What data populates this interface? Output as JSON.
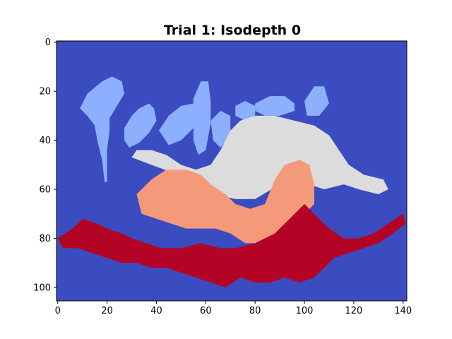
{
  "chart_data": {
    "type": "heatmap",
    "title": "Trial 1: Isodepth 0",
    "xlabel": "",
    "ylabel": "",
    "xlim": [
      0,
      141
    ],
    "ylim": [
      105,
      0
    ],
    "x_ticks": [
      0,
      20,
      40,
      60,
      80,
      100,
      120,
      140
    ],
    "y_ticks": [
      0,
      20,
      40,
      60,
      80,
      100
    ],
    "grid": false,
    "colormap": "coolwarm",
    "levels": [
      {
        "level": 0,
        "color": "#3b4cc0"
      },
      {
        "level": 1,
        "color": "#8db0fe"
      },
      {
        "level": 2,
        "color": "#dddcdc"
      },
      {
        "level": 3,
        "color": "#f49a7b"
      },
      {
        "level": 4,
        "color": "#b40426"
      }
    ],
    "background_level": 0,
    "regions": [
      {
        "level": 1,
        "polygons": [
          [
            [
              9,
              27
            ],
            [
              12,
              21
            ],
            [
              18,
              16
            ],
            [
              22,
              14
            ],
            [
              26,
              16
            ],
            [
              27,
              21
            ],
            [
              24,
              26
            ],
            [
              21,
              31
            ],
            [
              21,
              36
            ],
            [
              20,
              44
            ],
            [
              20,
              52
            ],
            [
              20,
              57
            ],
            [
              19,
              57
            ],
            [
              18,
              48
            ],
            [
              16,
              40
            ],
            [
              15,
              34
            ],
            [
              12,
              30
            ]
          ],
          [
            [
              27,
              35
            ],
            [
              30,
              30
            ],
            [
              33,
              27
            ],
            [
              37,
              25
            ],
            [
              39,
              27
            ],
            [
              40,
              32
            ],
            [
              37,
              37
            ],
            [
              33,
              41
            ],
            [
              29,
              43
            ],
            [
              27,
              40
            ]
          ],
          [
            [
              41,
              36
            ],
            [
              45,
              30
            ],
            [
              50,
              26
            ],
            [
              55,
              25
            ],
            [
              57,
              29
            ],
            [
              55,
              35
            ],
            [
              50,
              40
            ],
            [
              45,
              42
            ]
          ],
          [
            [
              55,
              23
            ],
            [
              58,
              16
            ],
            [
              61,
              16
            ],
            [
              62,
              24
            ],
            [
              62,
              33
            ],
            [
              60,
              44
            ],
            [
              57,
              46
            ],
            [
              55,
              40
            ]
          ],
          [
            [
              62,
              32
            ],
            [
              66,
              28
            ],
            [
              70,
              30
            ],
            [
              70,
              38
            ],
            [
              66,
              43
            ],
            [
              63,
              40
            ]
          ],
          [
            [
              72,
              26
            ],
            [
              76,
              24
            ],
            [
              80,
              26
            ],
            [
              80,
              30
            ],
            [
              76,
              32
            ],
            [
              72,
              30
            ]
          ],
          [
            [
              80,
              25
            ],
            [
              86,
              22
            ],
            [
              92,
              22
            ],
            [
              96,
              25
            ],
            [
              96,
              28
            ],
            [
              90,
              30
            ],
            [
              84,
              30
            ],
            [
              80,
              28
            ]
          ],
          [
            [
              100,
              24
            ],
            [
              104,
              18
            ],
            [
              108,
              18
            ],
            [
              110,
              25
            ],
            [
              106,
              30
            ],
            [
              101,
              30
            ]
          ]
        ]
      },
      {
        "level": 2,
        "polygons": [
          [
            [
              30,
              47
            ],
            [
              38,
              50
            ],
            [
              46,
              53
            ],
            [
              52,
              55
            ],
            [
              58,
              58
            ],
            [
              64,
              62
            ],
            [
              72,
              64
            ],
            [
              80,
              64
            ],
            [
              90,
              58
            ],
            [
              96,
              56
            ],
            [
              102,
              58
            ],
            [
              108,
              60
            ],
            [
              116,
              58
            ],
            [
              122,
              60
            ],
            [
              130,
              62
            ],
            [
              134,
              60
            ],
            [
              132,
              56
            ],
            [
              124,
              54
            ],
            [
              118,
              50
            ],
            [
              114,
              44
            ],
            [
              110,
              38
            ],
            [
              104,
              34
            ],
            [
              96,
              32
            ],
            [
              88,
              30
            ],
            [
              80,
              30
            ],
            [
              74,
              32
            ],
            [
              70,
              36
            ],
            [
              66,
              44
            ],
            [
              62,
              50
            ],
            [
              56,
              52
            ],
            [
              50,
              50
            ],
            [
              44,
              46
            ],
            [
              38,
              44
            ],
            [
              32,
              44
            ]
          ]
        ]
      },
      {
        "level": 3,
        "polygons": [
          [
            [
              32,
              62
            ],
            [
              38,
              56
            ],
            [
              44,
              52
            ],
            [
              52,
              52
            ],
            [
              58,
              54
            ],
            [
              62,
              58
            ],
            [
              68,
              62
            ],
            [
              72,
              66
            ],
            [
              78,
              68
            ],
            [
              84,
              66
            ],
            [
              88,
              56
            ],
            [
              92,
              50
            ],
            [
              98,
              48
            ],
            [
              102,
              50
            ],
            [
              104,
              58
            ],
            [
              104,
              66
            ],
            [
              98,
              72
            ],
            [
              94,
              76
            ],
            [
              88,
              80
            ],
            [
              82,
              82
            ],
            [
              76,
              82
            ],
            [
              70,
              78
            ],
            [
              64,
              76
            ],
            [
              58,
              76
            ],
            [
              52,
              76
            ],
            [
              46,
              74
            ],
            [
              40,
              72
            ],
            [
              34,
              70
            ]
          ]
        ]
      },
      {
        "level": 4,
        "polygons": [
          [
            [
              0,
              80
            ],
            [
              6,
              76
            ],
            [
              10,
              72
            ],
            [
              16,
              74
            ],
            [
              20,
              76
            ],
            [
              26,
              78
            ],
            [
              30,
              80
            ],
            [
              36,
              82
            ],
            [
              42,
              84
            ],
            [
              50,
              84
            ],
            [
              58,
              82
            ],
            [
              66,
              84
            ],
            [
              72,
              84
            ],
            [
              80,
              82
            ],
            [
              88,
              78
            ],
            [
              94,
              72
            ],
            [
              100,
              66
            ],
            [
              104,
              70
            ],
            [
              110,
              76
            ],
            [
              116,
              80
            ],
            [
              122,
              80
            ],
            [
              128,
              78
            ],
            [
              134,
              74
            ],
            [
              140,
              70
            ],
            [
              141,
              74
            ],
            [
              136,
              78
            ],
            [
              130,
              82
            ],
            [
              124,
              84
            ],
            [
              118,
              86
            ],
            [
              112,
              88
            ],
            [
              108,
              92
            ],
            [
              104,
              96
            ],
            [
              98,
              98
            ],
            [
              92,
              96
            ],
            [
              86,
              98
            ],
            [
              80,
              98
            ],
            [
              74,
              96
            ],
            [
              68,
              100
            ],
            [
              62,
              98
            ],
            [
              56,
              96
            ],
            [
              50,
              94
            ],
            [
              44,
              92
            ],
            [
              38,
              92
            ],
            [
              32,
              90
            ],
            [
              26,
              90
            ],
            [
              20,
              88
            ],
            [
              14,
              86
            ],
            [
              8,
              84
            ],
            [
              2,
              84
            ]
          ]
        ]
      }
    ]
  }
}
